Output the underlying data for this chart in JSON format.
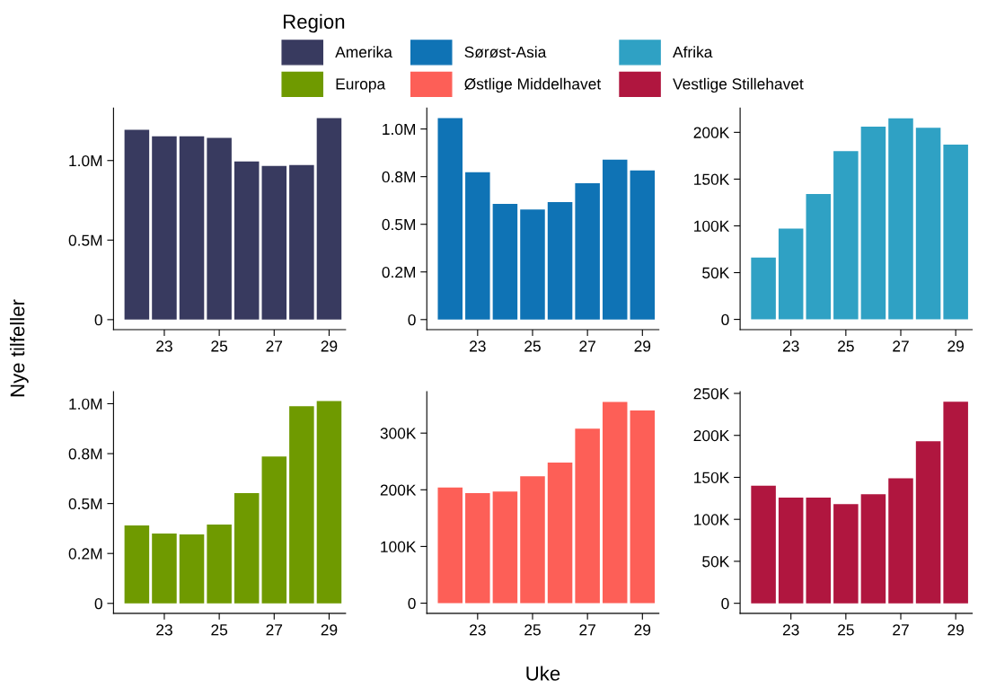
{
  "chart_data": [
    {
      "type": "bar",
      "legend": "top",
      "legend_title": "Region",
      "ylabel": "Nye tilfeller",
      "x": [
        22,
        23,
        24,
        25,
        26,
        27,
        28,
        29
      ],
      "xlim": [
        21.15,
        29.6
      ],
      "xticks": [
        23,
        25,
        27,
        29
      ],
      "ylim": [
        -63000,
        1330000
      ],
      "yticks": [
        {
          "value": 0,
          "label": "0"
        },
        {
          "value": 500000,
          "label": "0.5M"
        },
        {
          "value": 1000000,
          "label": "1.0M"
        }
      ],
      "grid": false,
      "series": [
        {
          "name": "Amerika",
          "color": "#383a5f",
          "values": [
            1193000,
            1153000,
            1153000,
            1142000,
            994000,
            966000,
            972000,
            1267000
          ]
        }
      ]
    },
    {
      "type": "bar",
      "legend": "top",
      "x": [
        22,
        23,
        24,
        25,
        26,
        27,
        28,
        29
      ],
      "xlim": [
        21.15,
        29.6
      ],
      "xticks": [
        23,
        25,
        27,
        29
      ],
      "ylim": [
        -53000,
        1110000
      ],
      "yticks": [
        {
          "value": 0,
          "label": "0"
        },
        {
          "value": 250000,
          "label": "0.2M"
        },
        {
          "value": 500000,
          "label": "0.5M"
        },
        {
          "value": 750000,
          "label": "0.8M"
        },
        {
          "value": 1000000,
          "label": "1.0M"
        }
      ],
      "grid": false,
      "series": [
        {
          "name": "Sørøst-Asia",
          "color": "#0f73b5",
          "values": [
            1057000,
            773000,
            607000,
            578000,
            616000,
            716000,
            839000,
            782000
          ]
        }
      ]
    },
    {
      "type": "bar",
      "legend": "top",
      "x": [
        22,
        23,
        24,
        25,
        26,
        27,
        28,
        29
      ],
      "xlim": [
        21.15,
        29.6
      ],
      "xticks": [
        23,
        25,
        27,
        29
      ],
      "ylim": [
        -11000,
        226000
      ],
      "yticks": [
        {
          "value": 0,
          "label": "0"
        },
        {
          "value": 50000,
          "label": "50K"
        },
        {
          "value": 100000,
          "label": "100K"
        },
        {
          "value": 150000,
          "label": "150K"
        },
        {
          "value": 200000,
          "label": "200K"
        }
      ],
      "grid": false,
      "series": [
        {
          "name": "Afrika",
          "color": "#2fa1c4",
          "values": [
            66000,
            97000,
            134000,
            180000,
            206000,
            215000,
            205000,
            187000
          ]
        }
      ]
    },
    {
      "type": "bar",
      "legend": "top",
      "x": [
        22,
        23,
        24,
        25,
        26,
        27,
        28,
        29
      ],
      "xlim": [
        21.15,
        29.6
      ],
      "xticks": [
        23,
        25,
        27,
        29
      ],
      "ylim": [
        -50000,
        1060000
      ],
      "yticks": [
        {
          "value": 0,
          "label": "0"
        },
        {
          "value": 250000,
          "label": "0.2M"
        },
        {
          "value": 500000,
          "label": "0.5M"
        },
        {
          "value": 750000,
          "label": "0.8M"
        },
        {
          "value": 1000000,
          "label": "1.0M"
        }
      ],
      "grid": false,
      "series": [
        {
          "name": "Europa",
          "color": "#6f9a00",
          "values": [
            390000,
            350000,
            345000,
            395000,
            552000,
            735000,
            987000,
            1013000
          ]
        }
      ]
    },
    {
      "type": "bar",
      "legend": "top",
      "xlabel": "Uke",
      "x": [
        22,
        23,
        24,
        25,
        26,
        27,
        28,
        29
      ],
      "xlim": [
        21.15,
        29.6
      ],
      "xticks": [
        23,
        25,
        27,
        29
      ],
      "ylim": [
        -18000,
        373000
      ],
      "yticks": [
        {
          "value": 0,
          "label": "0"
        },
        {
          "value": 100000,
          "label": "100K"
        },
        {
          "value": 200000,
          "label": "200K"
        },
        {
          "value": 300000,
          "label": "300K"
        }
      ],
      "grid": false,
      "series": [
        {
          "name": "Østlige Middelhavet",
          "color": "#fd5f57",
          "values": [
            204000,
            194000,
            197000,
            224000,
            248000,
            308000,
            355000,
            340000
          ]
        }
      ]
    },
    {
      "type": "bar",
      "legend": "top",
      "x": [
        22,
        23,
        24,
        25,
        26,
        27,
        28,
        29
      ],
      "xlim": [
        21.15,
        29.6
      ],
      "xticks": [
        23,
        25,
        27,
        29
      ],
      "ylim": [
        -12000,
        252000
      ],
      "yticks": [
        {
          "value": 0,
          "label": "0"
        },
        {
          "value": 50000,
          "label": "50K"
        },
        {
          "value": 100000,
          "label": "100K"
        },
        {
          "value": 150000,
          "label": "150K"
        },
        {
          "value": 200000,
          "label": "200K"
        },
        {
          "value": 250000,
          "label": "250K"
        }
      ],
      "grid": false,
      "series": [
        {
          "name": "Vestlige Stillehavet",
          "color": "#b0163f",
          "values": [
            140000,
            126000,
            126000,
            118000,
            130000,
            149000,
            193000,
            240000
          ]
        }
      ]
    }
  ]
}
